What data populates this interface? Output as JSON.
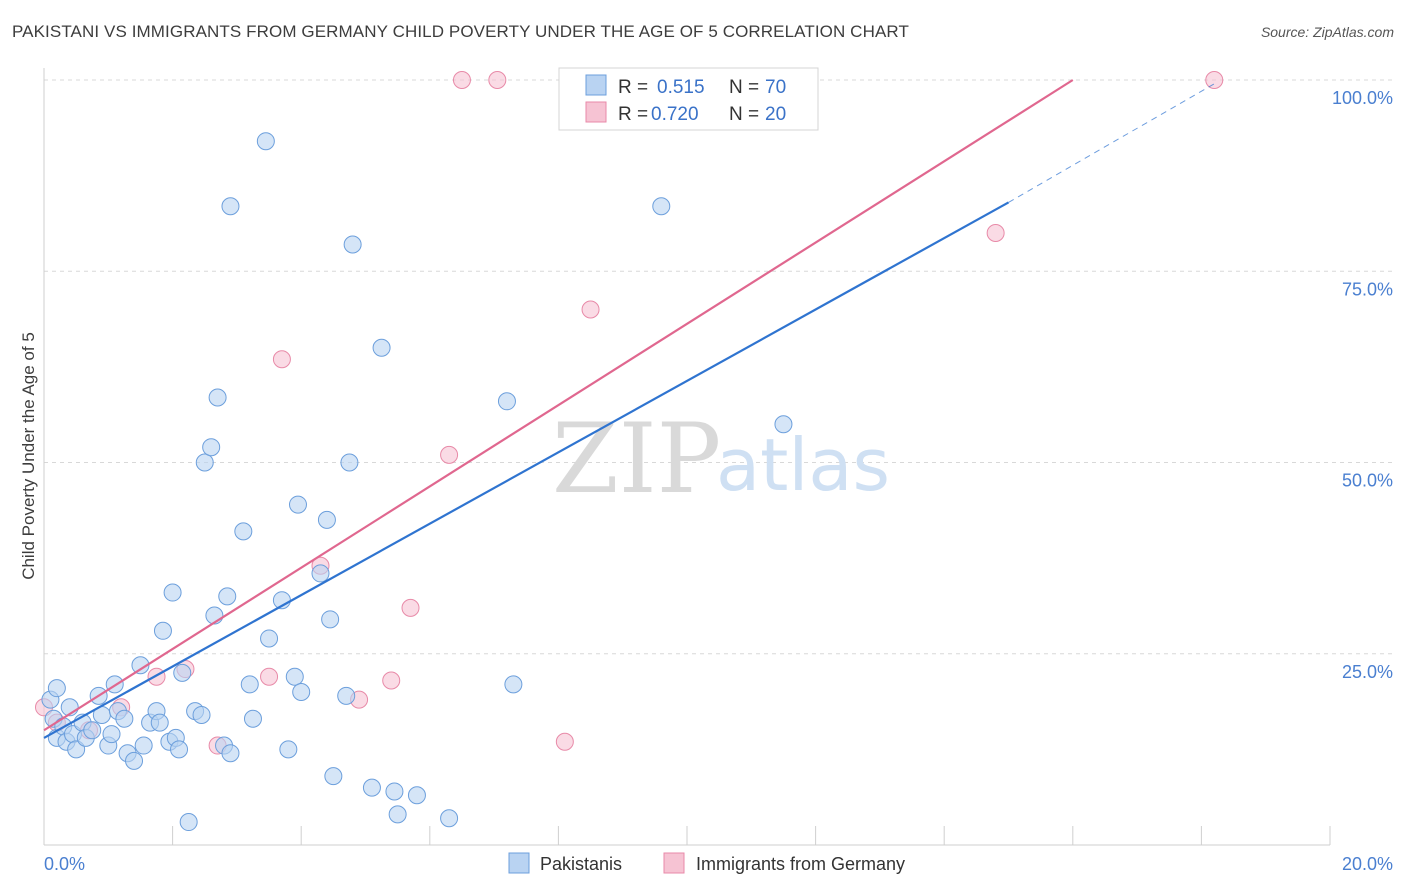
{
  "title": "PAKISTANI VS IMMIGRANTS FROM GERMANY CHILD POVERTY UNDER THE AGE OF 5 CORRELATION CHART",
  "source": "Source: ZipAtlas.com",
  "watermark": {
    "zip": "ZIP",
    "atlas": "atlas"
  },
  "legend": {
    "r_label": "R =",
    "n_label": "N =",
    "series": [
      {
        "r": "0.515",
        "n": "70"
      },
      {
        "r": "0.720",
        "n": "20"
      }
    ]
  },
  "colors": {
    "blue_fill": "#b9d3f2",
    "blue_stroke": "#6c9fdc",
    "blue_line": "#2f74d0",
    "pink_fill": "#f6c3d3",
    "pink_stroke": "#e88aa8",
    "pink_line": "#e0678f",
    "grid": "#d8d8d8",
    "tick_text": "#4a7fd0"
  },
  "chart_data": {
    "type": "scatter",
    "title": "PAKISTANI VS IMMIGRANTS FROM GERMANY CHILD POVERTY UNDER THE AGE OF 5 CORRELATION CHART",
    "xlabel": "",
    "ylabel": "Child Poverty Under the Age of 5",
    "xlim": [
      0,
      20
    ],
    "ylim": [
      0,
      100
    ],
    "x_tick_labels": [
      "0.0%",
      "20.0%"
    ],
    "y_ticks": [
      25,
      50,
      75,
      100
    ],
    "y_tick_labels": [
      "25.0%",
      "50.0%",
      "75.0%",
      "100.0%"
    ],
    "grid": true,
    "legend_position": "top-center",
    "series": [
      {
        "name": "Pakistanis",
        "color": "#6c9fdc",
        "r": 0.515,
        "n": 70,
        "trend": {
          "x0": 0.0,
          "y0": 14.0,
          "x1": 15.0,
          "y1": 84.0,
          "x_dash_end": 18.2,
          "y_dash_end": 99.5
        },
        "points": [
          [
            0.1,
            19.0
          ],
          [
            0.15,
            16.5
          ],
          [
            0.2,
            14.0
          ],
          [
            0.3,
            15.5
          ],
          [
            0.35,
            13.5
          ],
          [
            0.45,
            14.5
          ],
          [
            0.5,
            12.5
          ],
          [
            0.6,
            16.0
          ],
          [
            0.65,
            14.0
          ],
          [
            0.75,
            15.0
          ],
          [
            0.85,
            19.5
          ],
          [
            0.9,
            17.0
          ],
          [
            1.0,
            13.0
          ],
          [
            1.05,
            14.5
          ],
          [
            1.15,
            17.5
          ],
          [
            1.25,
            16.5
          ],
          [
            1.3,
            12.0
          ],
          [
            1.4,
            11.0
          ],
          [
            1.5,
            23.5
          ],
          [
            1.55,
            13.0
          ],
          [
            1.65,
            16.0
          ],
          [
            1.75,
            17.5
          ],
          [
            1.8,
            16.0
          ],
          [
            1.85,
            28.0
          ],
          [
            1.95,
            13.5
          ],
          [
            2.0,
            33.0
          ],
          [
            2.05,
            14.0
          ],
          [
            2.1,
            12.5
          ],
          [
            2.15,
            22.5
          ],
          [
            2.25,
            3.0
          ],
          [
            2.35,
            17.5
          ],
          [
            2.45,
            17.0
          ],
          [
            2.5,
            50.0
          ],
          [
            2.6,
            52.0
          ],
          [
            2.65,
            30.0
          ],
          [
            2.7,
            58.5
          ],
          [
            2.8,
            13.0
          ],
          [
            2.85,
            32.5
          ],
          [
            2.9,
            83.5
          ],
          [
            3.1,
            41.0
          ],
          [
            3.2,
            21.0
          ],
          [
            3.25,
            16.5
          ],
          [
            3.45,
            92.0
          ],
          [
            3.5,
            27.0
          ],
          [
            3.7,
            32.0
          ],
          [
            3.8,
            12.5
          ],
          [
            3.9,
            22.0
          ],
          [
            3.95,
            44.5
          ],
          [
            4.0,
            20.0
          ],
          [
            4.3,
            35.5
          ],
          [
            4.4,
            42.5
          ],
          [
            4.45,
            29.5
          ],
          [
            4.5,
            9.0
          ],
          [
            4.7,
            19.5
          ],
          [
            4.75,
            50.0
          ],
          [
            4.8,
            78.5
          ],
          [
            5.1,
            7.5
          ],
          [
            5.25,
            65.0
          ],
          [
            5.45,
            7.0
          ],
          [
            5.5,
            4.0
          ],
          [
            5.8,
            6.5
          ],
          [
            6.3,
            3.5
          ],
          [
            7.2,
            58.0
          ],
          [
            7.3,
            21.0
          ],
          [
            9.6,
            83.5
          ],
          [
            11.5,
            55.0
          ],
          [
            0.2,
            20.5
          ],
          [
            0.4,
            18.0
          ],
          [
            1.1,
            21.0
          ],
          [
            2.9,
            12.0
          ]
        ]
      },
      {
        "name": "Immigrants from Germany",
        "color": "#e88aa8",
        "r": 0.72,
        "n": 20,
        "trend": {
          "x0": 0.0,
          "y0": 15.0,
          "x1": 16.0,
          "y1": 100.0
        },
        "points": [
          [
            0.0,
            18.0
          ],
          [
            0.2,
            16.0
          ],
          [
            0.7,
            15.0
          ],
          [
            1.2,
            18.0
          ],
          [
            1.75,
            22.0
          ],
          [
            2.2,
            23.0
          ],
          [
            2.7,
            13.0
          ],
          [
            3.5,
            22.0
          ],
          [
            3.7,
            63.5
          ],
          [
            4.3,
            36.5
          ],
          [
            4.9,
            19.0
          ],
          [
            5.4,
            21.5
          ],
          [
            5.7,
            31.0
          ],
          [
            6.3,
            51.0
          ],
          [
            6.5,
            100.0
          ],
          [
            7.05,
            100.0
          ],
          [
            8.1,
            13.5
          ],
          [
            8.5,
            70.0
          ],
          [
            14.8,
            80.0
          ],
          [
            18.2,
            100.0
          ]
        ]
      }
    ]
  }
}
